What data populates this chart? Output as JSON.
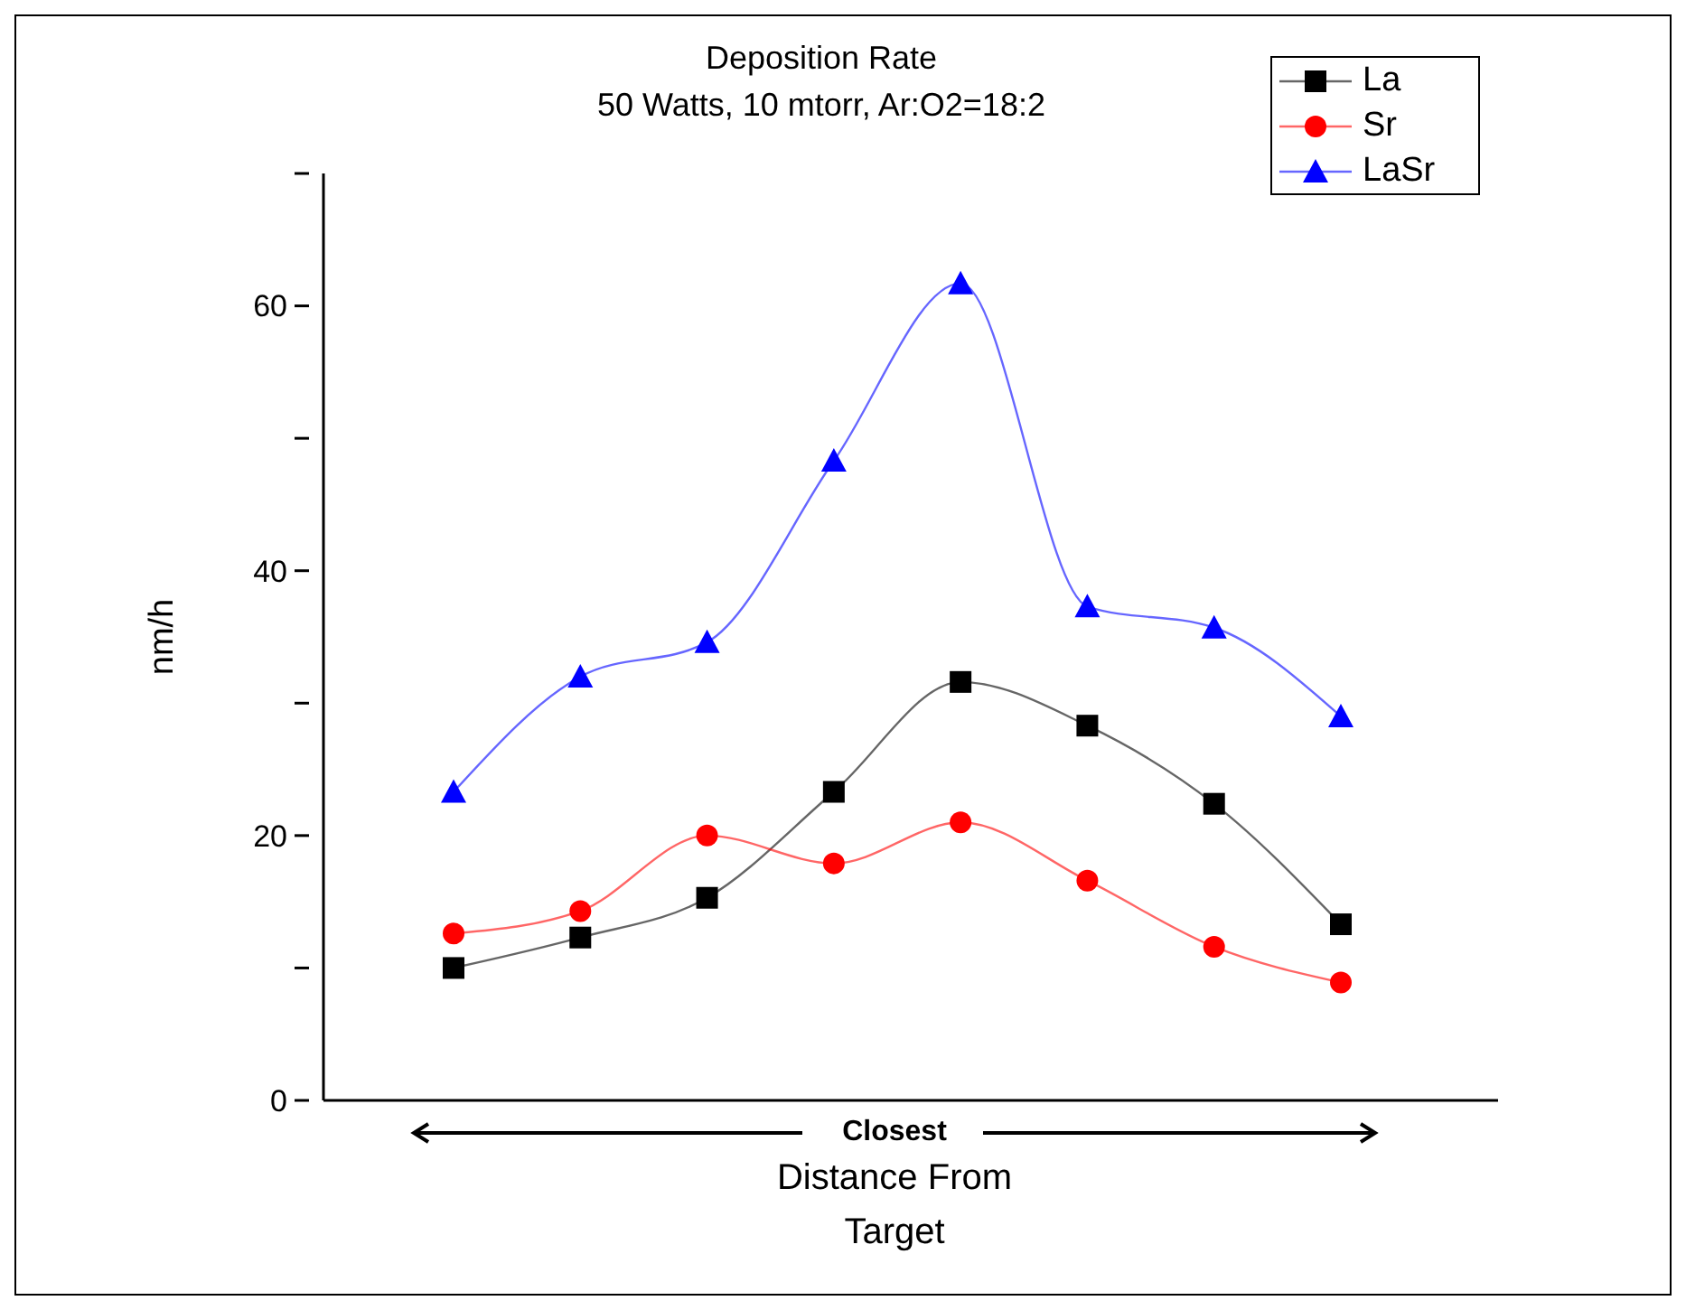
{
  "chart_data": {
    "type": "line",
    "title": "Deposition Rate",
    "subtitle": "50 Watts, 10 mtorr, Ar:O2=18:2",
    "xlabel": "Distance From Target",
    "ylabel": "nm/h",
    "categories": [
      null,
      null,
      null,
      null,
      null,
      null,
      null,
      null
    ],
    "series": [
      {
        "name": "La",
        "color": "#000000",
        "marker": "square",
        "values": [
          10,
          12.3,
          15.3,
          23.3,
          31.6,
          28.3,
          22.4,
          13.3
        ]
      },
      {
        "name": "Sr",
        "color": "#ff0000",
        "marker": "circle",
        "values": [
          12.6,
          14.3,
          20,
          17.9,
          21,
          16.6,
          11.6,
          8.9
        ]
      },
      {
        "name": "LaSr",
        "color": "#0000ff",
        "marker": "triangle",
        "values": [
          23.3,
          32,
          34.6,
          48.3,
          61.7,
          37.3,
          35.7,
          29
        ]
      }
    ],
    "ylim": [
      0,
      70
    ],
    "yticks": [
      0,
      {
        "value": 10,
        "label": null
      },
      20,
      {
        "value": 30,
        "label": null
      },
      40,
      {
        "value": 50,
        "label": null
      },
      60,
      {
        "value": 70,
        "label": null
      }
    ],
    "annotations": [
      "Closest"
    ],
    "grid": false,
    "legend": "top right"
  }
}
